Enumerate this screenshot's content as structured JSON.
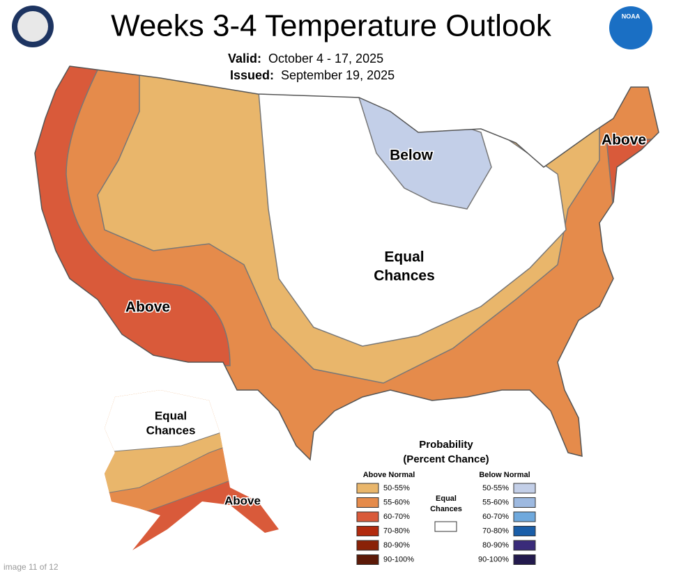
{
  "header": {
    "title": "Weeks 3-4 Temperature Outlook",
    "valid_label": "Valid:",
    "valid": "October 4 - 17, 2025",
    "issued_label": "Issued:",
    "issued": "September 19, 2025"
  },
  "noaa_logo": "NOAA",
  "map_labels": {
    "conus_below": "Below",
    "conus_above_ne": "Above",
    "conus_above_sw": "Above",
    "conus_equal": [
      "Equal",
      "Chances"
    ],
    "alaska_equal": [
      "Equal",
      "Chances"
    ],
    "alaska_above": "Above"
  },
  "legend": {
    "title": [
      "Probability",
      "(Percent Chance)"
    ],
    "above_heading": "Above Normal",
    "below_heading": "Below Normal",
    "equal_label": [
      "Equal",
      "Chances"
    ],
    "equal_color": "#ffffff",
    "above": [
      {
        "label": "50-55%",
        "color": "#e9b66b"
      },
      {
        "label": "55-60%",
        "color": "#e58b4b"
      },
      {
        "label": "60-70%",
        "color": "#d95a3a"
      },
      {
        "label": "70-80%",
        "color": "#b22a0e"
      },
      {
        "label": "80-90%",
        "color": "#8a2207"
      },
      {
        "label": "90-100%",
        "color": "#5c1a08"
      }
    ],
    "below": [
      {
        "label": "50-55%",
        "color": "#c3cfe8"
      },
      {
        "label": "55-60%",
        "color": "#9db9e0"
      },
      {
        "label": "60-70%",
        "color": "#6fa9dd"
      },
      {
        "label": "70-80%",
        "color": "#1a5ea8"
      },
      {
        "label": "80-90%",
        "color": "#3a2b7a"
      },
      {
        "label": "90-100%",
        "color": "#231a4d"
      }
    ]
  },
  "footer": "image 11 of 12"
}
